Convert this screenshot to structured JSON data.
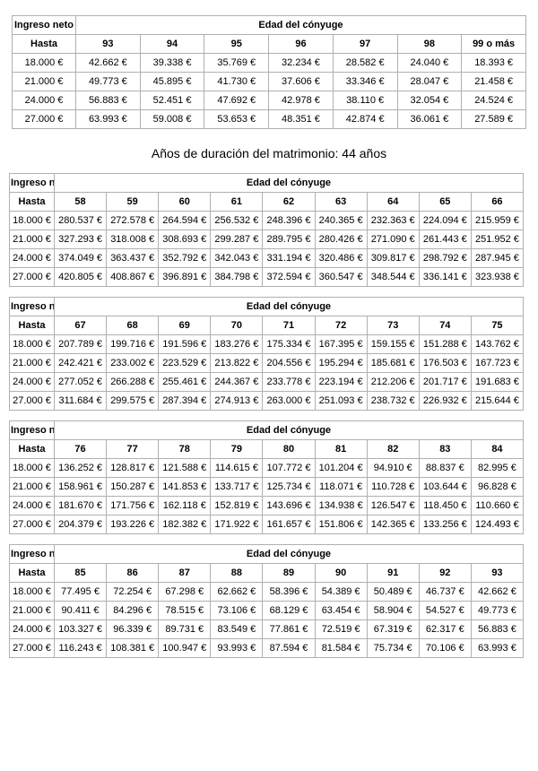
{
  "document": {
    "section_heading": "Años de duración del matrimonio: 44 años"
  },
  "labels": {
    "income_header": "Ingreso neto",
    "age_header": "Edad del cónyuge",
    "income_limit_label": "Hasta"
  },
  "tables": [
    {
      "ages": [
        "93",
        "94",
        "95",
        "96",
        "97",
        "98",
        "99 o más"
      ],
      "rows": [
        {
          "income": "18.000 €",
          "values": [
            "42.662 €",
            "39.338 €",
            "35.769 €",
            "32.234 €",
            "28.582 €",
            "24.040 €",
            "18.393 €"
          ]
        },
        {
          "income": "21.000 €",
          "values": [
            "49.773 €",
            "45.895 €",
            "41.730 €",
            "37.606 €",
            "33.346 €",
            "28.047 €",
            "21.458 €"
          ]
        },
        {
          "income": "24.000 €",
          "values": [
            "56.883 €",
            "52.451 €",
            "47.692 €",
            "42.978 €",
            "38.110 €",
            "32.054 €",
            "24.524 €"
          ]
        },
        {
          "income": "27.000 €",
          "values": [
            "63.993 €",
            "59.008 €",
            "53.653 €",
            "48.351 €",
            "42.874 €",
            "36.061 €",
            "27.589 €"
          ]
        }
      ]
    },
    {
      "ages": [
        "58",
        "59",
        "60",
        "61",
        "62",
        "63",
        "64",
        "65",
        "66"
      ],
      "rows": [
        {
          "income": "18.000 €",
          "values": [
            "280.537 €",
            "272.578 €",
            "264.594 €",
            "256.532 €",
            "248.396 €",
            "240.365 €",
            "232.363 €",
            "224.094 €",
            "215.959 €"
          ]
        },
        {
          "income": "21.000 €",
          "values": [
            "327.293 €",
            "318.008 €",
            "308.693 €",
            "299.287 €",
            "289.795 €",
            "280.426 €",
            "271.090 €",
            "261.443 €",
            "251.952 €"
          ]
        },
        {
          "income": "24.000 €",
          "values": [
            "374.049 €",
            "363.437 €",
            "352.792 €",
            "342.043 €",
            "331.194 €",
            "320.486 €",
            "309.817 €",
            "298.792 €",
            "287.945 €"
          ]
        },
        {
          "income": "27.000 €",
          "values": [
            "420.805 €",
            "408.867 €",
            "396.891 €",
            "384.798 €",
            "372.594 €",
            "360.547 €",
            "348.544 €",
            "336.141 €",
            "323.938 €"
          ]
        }
      ]
    },
    {
      "ages": [
        "67",
        "68",
        "69",
        "70",
        "71",
        "72",
        "73",
        "74",
        "75"
      ],
      "rows": [
        {
          "income": "18.000 €",
          "values": [
            "207.789 €",
            "199.716 €",
            "191.596 €",
            "183.276 €",
            "175.334 €",
            "167.395 €",
            "159.155 €",
            "151.288 €",
            "143.762 €"
          ]
        },
        {
          "income": "21.000 €",
          "values": [
            "242.421 €",
            "233.002 €",
            "223.529 €",
            "213.822 €",
            "204.556 €",
            "195.294 €",
            "185.681 €",
            "176.503 €",
            "167.723 €"
          ]
        },
        {
          "income": "24.000 €",
          "values": [
            "277.052 €",
            "266.288 €",
            "255.461 €",
            "244.367 €",
            "233.778 €",
            "223.194 €",
            "212.206 €",
            "201.717 €",
            "191.683 €"
          ]
        },
        {
          "income": "27.000 €",
          "values": [
            "311.684 €",
            "299.575 €",
            "287.394 €",
            "274.913 €",
            "263.000 €",
            "251.093 €",
            "238.732 €",
            "226.932 €",
            "215.644 €"
          ]
        }
      ]
    },
    {
      "ages": [
        "76",
        "77",
        "78",
        "79",
        "80",
        "81",
        "82",
        "83",
        "84"
      ],
      "rows": [
        {
          "income": "18.000 €",
          "values": [
            "136.252 €",
            "128.817 €",
            "121.588 €",
            "114.615 €",
            "107.772 €",
            "101.204 €",
            "94.910 €",
            "88.837 €",
            "82.995 €"
          ]
        },
        {
          "income": "21.000 €",
          "values": [
            "158.961 €",
            "150.287 €",
            "141.853 €",
            "133.717 €",
            "125.734 €",
            "118.071 €",
            "110.728 €",
            "103.644 €",
            "96.828 €"
          ]
        },
        {
          "income": "24.000 €",
          "values": [
            "181.670 €",
            "171.756 €",
            "162.118 €",
            "152.819 €",
            "143.696 €",
            "134.938 €",
            "126.547 €",
            "118.450 €",
            "110.660 €"
          ]
        },
        {
          "income": "27.000 €",
          "values": [
            "204.379 €",
            "193.226 €",
            "182.382 €",
            "171.922 €",
            "161.657 €",
            "151.806 €",
            "142.365 €",
            "133.256 €",
            "124.493 €"
          ]
        }
      ]
    },
    {
      "ages": [
        "85",
        "86",
        "87",
        "88",
        "89",
        "90",
        "91",
        "92",
        "93"
      ],
      "rows": [
        {
          "income": "18.000 €",
          "values": [
            "77.495 €",
            "72.254 €",
            "67.298 €",
            "62.662 €",
            "58.396 €",
            "54.389 €",
            "50.489 €",
            "46.737 €",
            "42.662 €"
          ]
        },
        {
          "income": "21.000 €",
          "values": [
            "90.411 €",
            "84.296 €",
            "78.515 €",
            "73.106 €",
            "68.129 €",
            "63.454 €",
            "58.904 €",
            "54.527 €",
            "49.773 €"
          ]
        },
        {
          "income": "24.000 €",
          "values": [
            "103.327 €",
            "96.339 €",
            "89.731 €",
            "83.549 €",
            "77.861 €",
            "72.519 €",
            "67.319 €",
            "62.317 €",
            "56.883 €"
          ]
        },
        {
          "income": "27.000 €",
          "values": [
            "116.243 €",
            "108.381 €",
            "100.947 €",
            "93.993 €",
            "87.594 €",
            "81.584 €",
            "75.734 €",
            "70.106 €",
            "63.993 €"
          ]
        }
      ]
    }
  ]
}
